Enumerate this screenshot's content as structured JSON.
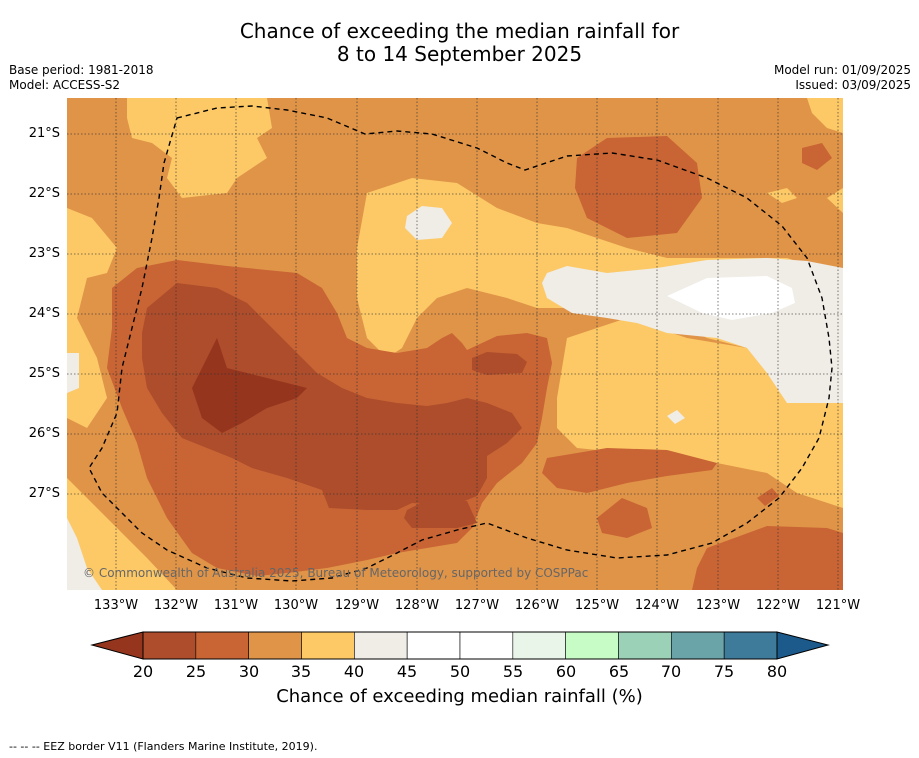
{
  "title": {
    "line1": "Chance of exceeding the median rainfall for",
    "line2": "8 to 14 September 2025"
  },
  "meta_left": {
    "base_period": "Base period: 1981-2018",
    "model": "Model: ACCESS-S2"
  },
  "meta_right": {
    "model_run": "Model run: 01/09/2025",
    "issued": "Issued: 03/09/2025"
  },
  "map": {
    "lat_labels": [
      "21°S",
      "22°S",
      "23°S",
      "24°S",
      "25°S",
      "26°S",
      "27°S"
    ],
    "lon_labels": [
      "133°W",
      "132°W",
      "131°W",
      "130°W",
      "129°W",
      "128°W",
      "127°W",
      "126°W",
      "125°W",
      "124°W",
      "123°W",
      "122°W",
      "121°W"
    ],
    "credit": "© Commonwealth of Australia 2025, Bureau of Meteorology, supported by COSPPac",
    "colors": {
      "c20_25": "#ad4d2b",
      "c25_30": "#c96434",
      "c30_35": "#e09448",
      "c35_40": "#fcc966",
      "c40_45": "#f0ece6",
      "c45_55": "#ffffff",
      "below20": "#95351e"
    }
  },
  "colorbar": {
    "labels": [
      "20",
      "25",
      "30",
      "35",
      "40",
      "45",
      "50",
      "55",
      "60",
      "65",
      "70",
      "75",
      "80"
    ],
    "colors": [
      "#ad4d2b",
      "#c96434",
      "#e09448",
      "#fcc966",
      "#f0ece6",
      "#ffffff",
      "#ffffff",
      "#e9f5e9",
      "#c8fcc7",
      "#9bd1b7",
      "#6aa3a8",
      "#3e7a9a"
    ],
    "under_color": "#95351e",
    "over_color": "#1c5a8c",
    "title": "Chance of exceeding median rainfall (%)"
  },
  "footnote": "-- -- -- EEZ border V11 (Flanders Marine Institute, 2019)."
}
